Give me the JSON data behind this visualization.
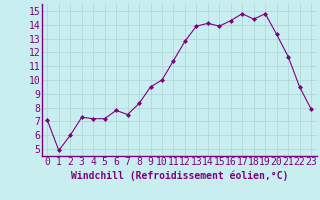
{
  "x": [
    0,
    1,
    2,
    3,
    4,
    5,
    6,
    7,
    8,
    9,
    10,
    11,
    12,
    13,
    14,
    15,
    16,
    17,
    18,
    19,
    20,
    21,
    22,
    23
  ],
  "y": [
    7.1,
    4.9,
    6.0,
    7.3,
    7.2,
    7.2,
    7.8,
    7.5,
    8.3,
    9.5,
    10.0,
    11.4,
    12.8,
    13.9,
    14.1,
    13.9,
    14.3,
    14.8,
    14.4,
    14.8,
    13.3,
    11.7,
    9.5,
    7.9
  ],
  "line_color": "#800080",
  "marker": "D",
  "marker_size": 2,
  "xlabel": "Windchill (Refroidissement éolien,°C)",
  "yticks": [
    5,
    6,
    7,
    8,
    9,
    10,
    11,
    12,
    13,
    14,
    15
  ],
  "xlim": [
    -0.5,
    23.5
  ],
  "ylim": [
    4.5,
    15.5
  ],
  "grid_color": "#b0d8d8",
  "bg_color": "#c8eef0",
  "tick_color": "#800080",
  "label_color": "#800080",
  "xlabel_fontsize": 7,
  "tick_fontsize": 7,
  "spine_color": "#800080"
}
